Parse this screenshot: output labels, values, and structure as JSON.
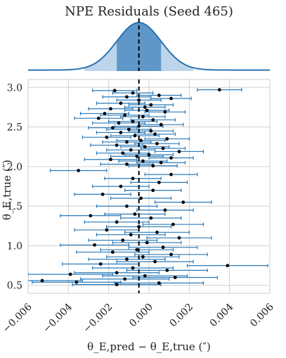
{
  "chart_data": {
    "type": "scatter",
    "title": "NPE Residuals (Seed 465)",
    "xlabel": "θ_E,pred − θ_E,true (″)",
    "ylabel": "θ_E,true (″)",
    "xlim": [
      -0.006,
      0.006
    ],
    "ylim": [
      0.4,
      3.1
    ],
    "xticks": [
      "−0.006",
      "−0.004",
      "−0.002",
      "0.000",
      "0.002",
      "0.004",
      "0.006"
    ],
    "yticks": [
      "0.5",
      "1.0",
      "1.5",
      "2.0",
      "2.5",
      "3.0"
    ],
    "xtick_values": [
      -0.006,
      -0.004,
      -0.002,
      0.0,
      0.002,
      0.004,
      0.006
    ],
    "ytick_values": [
      0.5,
      1.0,
      1.5,
      2.0,
      2.5,
      3.0
    ],
    "grid": true,
    "reference_line_x": -0.0005,
    "density": {
      "mean": -0.0005,
      "std": 0.0011,
      "inner_band": [
        -0.0016,
        0.0006
      ],
      "outer_band": [
        -0.0032,
        0.0022
      ]
    },
    "colors": {
      "errorbar": "#2a7ab9",
      "point": "#000000",
      "density_line": "#2a72b0",
      "inner_band": "#5e97c8",
      "outer_band": "#bcd5ea",
      "refline": "#000000",
      "grid": "#d0d0d0"
    },
    "series": [
      {
        "points": [
          {
            "x": 0.0035,
            "y": 2.97,
            "err": 0.0011
          },
          {
            "x": -0.0017,
            "y": 2.96,
            "err": 0.0011
          },
          {
            "x": -0.0008,
            "y": 2.93,
            "err": 0.001
          },
          {
            "x": 0.0005,
            "y": 2.9,
            "err": 0.0011
          },
          {
            "x": -0.0011,
            "y": 2.88,
            "err": 0.0012
          },
          {
            "x": 0.0011,
            "y": 2.86,
            "err": 0.001
          },
          {
            "x": -0.0005,
            "y": 2.84,
            "err": 0.0011
          },
          {
            "x": -0.0014,
            "y": 2.8,
            "err": 0.0012
          },
          {
            "x": 0.0001,
            "y": 2.78,
            "err": 0.0011
          },
          {
            "x": -0.0002,
            "y": 2.75,
            "err": 0.001
          },
          {
            "x": -0.0019,
            "y": 2.73,
            "err": 0.0011
          },
          {
            "x": -0.0001,
            "y": 2.71,
            "err": 0.0011
          },
          {
            "x": 0.0008,
            "y": 2.69,
            "err": 0.001
          },
          {
            "x": -0.0022,
            "y": 2.67,
            "err": 0.0012
          },
          {
            "x": -0.0012,
            "y": 2.65,
            "err": 0.0012
          },
          {
            "x": -0.0003,
            "y": 2.63,
            "err": 0.0011
          },
          {
            "x": -0.0025,
            "y": 2.61,
            "err": 0.0012
          },
          {
            "x": 0.0002,
            "y": 2.59,
            "err": 0.0011
          },
          {
            "x": -0.0008,
            "y": 2.57,
            "err": 0.0012
          },
          {
            "x": -0.0015,
            "y": 2.55,
            "err": 0.0013
          },
          {
            "x": 0.0006,
            "y": 2.53,
            "err": 0.0011
          },
          {
            "x": -0.0005,
            "y": 2.51,
            "err": 0.0012
          },
          {
            "x": -0.0018,
            "y": 2.49,
            "err": 0.0012
          },
          {
            "x": -0.001,
            "y": 2.47,
            "err": 0.0011
          },
          {
            "x": 0.0001,
            "y": 2.45,
            "err": 0.0011
          },
          {
            "x": -0.0014,
            "y": 2.43,
            "err": 0.0012
          },
          {
            "x": 0.0003,
            "y": 2.41,
            "err": 0.001
          },
          {
            "x": -0.0007,
            "y": 2.39,
            "err": 0.0012
          },
          {
            "x": -0.0021,
            "y": 2.37,
            "err": 0.0012
          },
          {
            "x": 0.0009,
            "y": 2.35,
            "err": 0.0011
          },
          {
            "x": -0.0004,
            "y": 2.33,
            "err": 0.0012
          },
          {
            "x": -0.0011,
            "y": 2.31,
            "err": 0.0012
          },
          {
            "x": 0.0004,
            "y": 2.29,
            "err": 0.0011
          },
          {
            "x": -0.0016,
            "y": 2.27,
            "err": 0.0013
          },
          {
            "x": -0.0002,
            "y": 2.25,
            "err": 0.0012
          },
          {
            "x": 0.0007,
            "y": 2.23,
            "err": 0.0011
          },
          {
            "x": -0.0009,
            "y": 2.21,
            "err": 0.0012
          },
          {
            "x": 0.0015,
            "y": 2.19,
            "err": 0.0012
          },
          {
            "x": -0.0013,
            "y": 2.17,
            "err": 0.0013
          },
          {
            "x": 0.0,
            "y": 2.15,
            "err": 0.0012
          },
          {
            "x": -0.0006,
            "y": 2.13,
            "err": 0.0013
          },
          {
            "x": 0.0011,
            "y": 2.11,
            "err": 0.0011
          },
          {
            "x": -0.0019,
            "y": 2.09,
            "err": 0.0013
          },
          {
            "x": -0.0003,
            "y": 2.07,
            "err": 0.0012
          },
          {
            "x": 0.0006,
            "y": 2.05,
            "err": 0.0012
          },
          {
            "x": -0.0011,
            "y": 2.03,
            "err": 0.0013
          },
          {
            "x": 0.0002,
            "y": 2.01,
            "err": 0.0012
          },
          {
            "x": -0.0035,
            "y": 1.95,
            "err": 0.0014
          },
          {
            "x": 0.0011,
            "y": 1.9,
            "err": 0.0013
          },
          {
            "x": -0.0008,
            "y": 1.85,
            "err": 0.0014
          },
          {
            "x": 0.0005,
            "y": 1.8,
            "err": 0.0014
          },
          {
            "x": -0.0014,
            "y": 1.75,
            "err": 0.0014
          },
          {
            "x": 0.0002,
            "y": 1.7,
            "err": 0.0014
          },
          {
            "x": -0.0023,
            "y": 1.65,
            "err": 0.0014
          },
          {
            "x": -0.0004,
            "y": 1.6,
            "err": 0.0015
          },
          {
            "x": 0.0017,
            "y": 1.55,
            "err": 0.0014
          },
          {
            "x": -0.0011,
            "y": 1.5,
            "err": 0.0015
          },
          {
            "x": 0.0008,
            "y": 1.45,
            "err": 0.0014
          },
          {
            "x": -0.0007,
            "y": 1.4,
            "err": 0.0015
          },
          {
            "x": -0.0029,
            "y": 1.38,
            "err": 0.0015
          },
          {
            "x": 0.0001,
            "y": 1.35,
            "err": 0.0015
          },
          {
            "x": -0.0016,
            "y": 1.3,
            "err": 0.0016
          },
          {
            "x": 0.0012,
            "y": 1.27,
            "err": 0.0015
          },
          {
            "x": -0.0005,
            "y": 1.24,
            "err": 0.0016
          },
          {
            "x": -0.0021,
            "y": 1.2,
            "err": 0.0016
          },
          {
            "x": 0.0004,
            "y": 1.17,
            "err": 0.0016
          },
          {
            "x": -0.0009,
            "y": 1.14,
            "err": 0.0017
          },
          {
            "x": 0.0015,
            "y": 1.1,
            "err": 0.0016
          },
          {
            "x": -0.0013,
            "y": 1.07,
            "err": 0.0017
          },
          {
            "x": -0.0001,
            "y": 1.04,
            "err": 0.0017
          },
          {
            "x": -0.0027,
            "y": 1.01,
            "err": 0.0017
          },
          {
            "x": 0.0007,
            "y": 0.98,
            "err": 0.0017
          },
          {
            "x": -0.0006,
            "y": 0.95,
            "err": 0.0018
          },
          {
            "x": -0.0018,
            "y": 0.92,
            "err": 0.0018
          },
          {
            "x": 0.0011,
            "y": 0.89,
            "err": 0.0018
          },
          {
            "x": -0.0003,
            "y": 0.86,
            "err": 0.0018
          },
          {
            "x": -0.0011,
            "y": 0.83,
            "err": 0.0019
          },
          {
            "x": 0.0003,
            "y": 0.8,
            "err": 0.0019
          },
          {
            "x": -0.0024,
            "y": 0.77,
            "err": 0.0019
          },
          {
            "x": 0.0039,
            "y": 0.75,
            "err": 0.002
          },
          {
            "x": -0.0008,
            "y": 0.72,
            "err": 0.002
          },
          {
            "x": 0.0009,
            "y": 0.69,
            "err": 0.002
          },
          {
            "x": -0.0016,
            "y": 0.66,
            "err": 0.0021
          },
          {
            "x": -0.0039,
            "y": 0.64,
            "err": 0.0021
          },
          {
            "x": -0.0002,
            "y": 0.62,
            "err": 0.0021
          },
          {
            "x": 0.0013,
            "y": 0.6,
            "err": 0.0021
          },
          {
            "x": -0.0012,
            "y": 0.58,
            "err": 0.0022
          },
          {
            "x": -0.0053,
            "y": 0.56,
            "err": 0.002
          },
          {
            "x": -0.0036,
            "y": 0.54,
            "err": 0.0022
          },
          {
            "x": 0.0005,
            "y": 0.53,
            "err": 0.0022
          },
          {
            "x": -0.0016,
            "y": 0.51,
            "err": 0.0022
          }
        ]
      }
    ]
  }
}
